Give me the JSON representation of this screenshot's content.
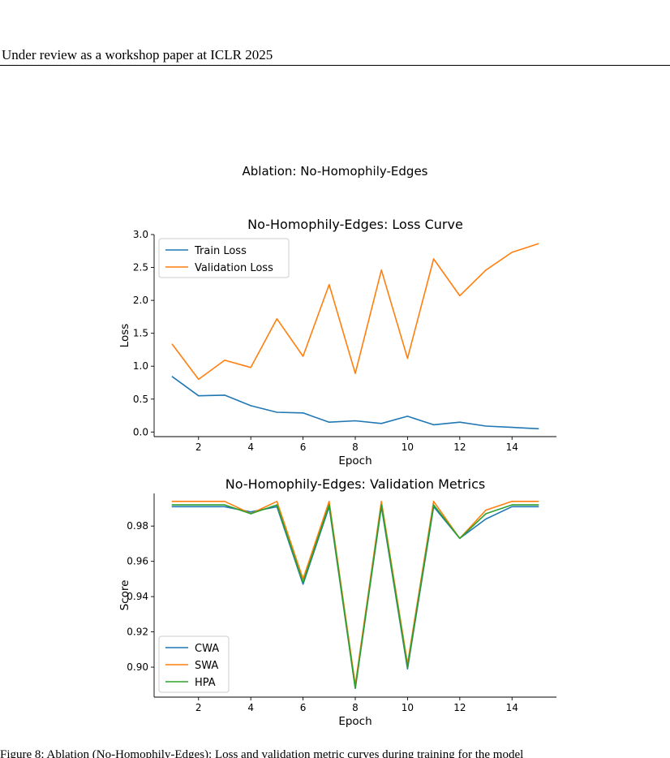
{
  "page": {
    "header": "Under review as a workshop paper at ICLR 2025",
    "suptitle": "Ablation: No-Homophily-Edges",
    "caption": "Figure 8: Ablation (No-Homophily-Edges): Loss and validation metric curves during training for the model"
  },
  "colors": {
    "blue": "#1f77b4",
    "orange": "#ff7f0e",
    "green": "#2ca02c"
  },
  "chart_data": [
    {
      "type": "line",
      "title": "No-Homophily-Edges: Loss Curve",
      "xlabel": "Epoch",
      "ylabel": "Loss",
      "x": [
        1,
        2,
        3,
        4,
        5,
        6,
        7,
        8,
        9,
        10,
        11,
        12,
        13,
        14,
        15
      ],
      "xticks": [
        2,
        4,
        6,
        8,
        10,
        12,
        14
      ],
      "yticks": [
        0.0,
        0.5,
        1.0,
        1.5,
        2.0,
        2.5,
        3.0
      ],
      "ytick_labels": [
        "0.0",
        "0.5",
        "1.0",
        "1.5",
        "2.0",
        "2.5",
        "3.0"
      ],
      "xlim": [
        0.3,
        15.7
      ],
      "ylim": [
        -0.07,
        3.0
      ],
      "legend": "top-left",
      "grid": false,
      "series": [
        {
          "name": "Train Loss",
          "color": "#1f77b4",
          "values": [
            0.84,
            0.55,
            0.56,
            0.4,
            0.3,
            0.29,
            0.15,
            0.17,
            0.13,
            0.24,
            0.11,
            0.15,
            0.09,
            0.07,
            0.05
          ]
        },
        {
          "name": "Validation Loss",
          "color": "#ff7f0e",
          "values": [
            1.33,
            0.8,
            1.09,
            0.98,
            1.72,
            1.15,
            2.24,
            0.89,
            2.46,
            1.12,
            2.63,
            2.07,
            2.46,
            2.73,
            2.86
          ]
        }
      ]
    },
    {
      "type": "line",
      "title": "No-Homophily-Edges: Validation Metrics",
      "xlabel": "Epoch",
      "ylabel": "Score",
      "x": [
        1,
        2,
        3,
        4,
        5,
        6,
        7,
        8,
        9,
        10,
        11,
        12,
        13,
        14,
        15
      ],
      "xticks": [
        2,
        4,
        6,
        8,
        10,
        12,
        14
      ],
      "yticks": [
        0.9,
        0.92,
        0.94,
        0.96,
        0.98
      ],
      "ytick_labels": [
        "0.90",
        "0.92",
        "0.94",
        "0.96",
        "0.98"
      ],
      "xlim": [
        0.3,
        15.7
      ],
      "ylim": [
        0.883,
        0.9985
      ],
      "legend": "bottom-left",
      "grid": false,
      "series": [
        {
          "name": "CWA",
          "color": "#1f77b4",
          "values": [
            0.991,
            0.991,
            0.991,
            0.988,
            0.991,
            0.947,
            0.991,
            0.888,
            0.991,
            0.899,
            0.991,
            0.973,
            0.984,
            0.991,
            0.991
          ]
        },
        {
          "name": "SWA",
          "color": "#ff7f0e",
          "values": [
            0.994,
            0.994,
            0.994,
            0.987,
            0.994,
            0.95,
            0.994,
            0.89,
            0.994,
            0.902,
            0.994,
            0.973,
            0.989,
            0.994,
            0.994
          ]
        },
        {
          "name": "HPA",
          "color": "#2ca02c",
          "values": [
            0.992,
            0.992,
            0.992,
            0.987,
            0.992,
            0.948,
            0.992,
            0.888,
            0.992,
            0.9,
            0.992,
            0.973,
            0.987,
            0.992,
            0.992
          ]
        }
      ]
    }
  ]
}
